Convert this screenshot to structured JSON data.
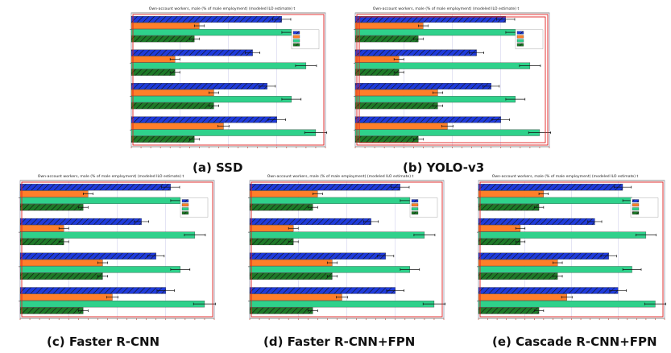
{
  "captions": {
    "a": "(a) SSD",
    "b": "(b) YOLO-v3",
    "c": "(c) Faster R-CNN",
    "d": "(d) Faster R-CNN+FPN",
    "e": "(e) Cascade R-CNN+FPN"
  },
  "chart_data": [
    {
      "type": "bar",
      "orientation": "horizontal",
      "title": "Own-account workers, male (% of male employment) (modeled ILO estimate) t",
      "xlabel": "",
      "ylabel": "",
      "grid": true,
      "legend_position": "top-right",
      "xlim": [
        0,
        40
      ],
      "categories": [
        "",
        "",
        "",
        ""
      ],
      "series": [
        {
          "name": "",
          "color": "#1f3bdb",
          "pattern": "hatch",
          "values": [
            31,
            25,
            28,
            30
          ]
        },
        {
          "name": "",
          "color": "#ff7f2a",
          "values": [
            14,
            9,
            17,
            19
          ]
        },
        {
          "name": "",
          "color": "#2fd18b",
          "values": [
            33,
            36,
            33,
            38
          ]
        },
        {
          "name": "",
          "color": "#1e7a28",
          "pattern": "hatch",
          "values": [
            13,
            9,
            17,
            13
          ]
        }
      ],
      "detections": 1
    },
    {
      "type": "bar",
      "orientation": "horizontal",
      "title": "Own-account workers, male (% of male employment) (modeled ILO estimate) t",
      "xlabel": "",
      "ylabel": "",
      "grid": true,
      "legend_position": "top-right",
      "xlim": [
        0,
        40
      ],
      "categories": [
        "",
        "",
        "",
        ""
      ],
      "series": [
        {
          "name": "",
          "color": "#1f3bdb",
          "pattern": "hatch",
          "values": [
            31,
            25,
            28,
            30
          ]
        },
        {
          "name": "",
          "color": "#ff7f2a",
          "values": [
            14,
            9,
            17,
            19
          ]
        },
        {
          "name": "",
          "color": "#2fd18b",
          "values": [
            33,
            36,
            33,
            38
          ]
        },
        {
          "name": "",
          "color": "#1e7a28",
          "pattern": "hatch",
          "values": [
            13,
            9,
            17,
            13
          ]
        }
      ],
      "detections": 2
    },
    {
      "type": "bar",
      "orientation": "horizontal",
      "title": "Own-account workers, male (% of male employment) (modeled ILO estimate) t",
      "xlabel": "",
      "ylabel": "",
      "grid": true,
      "legend_position": "top-right",
      "xlim": [
        0,
        40
      ],
      "categories": [
        "",
        "",
        "",
        ""
      ],
      "series": [
        {
          "name": "",
          "color": "#1f3bdb",
          "pattern": "hatch",
          "values": [
            31,
            25,
            28,
            30
          ]
        },
        {
          "name": "",
          "color": "#ff7f2a",
          "values": [
            14,
            9,
            17,
            19
          ]
        },
        {
          "name": "",
          "color": "#2fd18b",
          "values": [
            33,
            36,
            33,
            38
          ]
        },
        {
          "name": "",
          "color": "#1e7a28",
          "pattern": "hatch",
          "values": [
            13,
            9,
            17,
            13
          ]
        }
      ],
      "detections": 1
    },
    {
      "type": "bar",
      "orientation": "horizontal",
      "title": "Own-account workers, male (% of male employment) (modeled ILO estimate) t",
      "xlabel": "",
      "ylabel": "",
      "grid": true,
      "legend_position": "top-right",
      "xlim": [
        0,
        40
      ],
      "categories": [
        "",
        "",
        "",
        ""
      ],
      "series": [
        {
          "name": "",
          "color": "#1f3bdb",
          "pattern": "hatch",
          "values": [
            31,
            25,
            28,
            30
          ]
        },
        {
          "name": "",
          "color": "#ff7f2a",
          "values": [
            14,
            9,
            17,
            19
          ]
        },
        {
          "name": "",
          "color": "#2fd18b",
          "values": [
            33,
            36,
            33,
            38
          ]
        },
        {
          "name": "",
          "color": "#1e7a28",
          "pattern": "hatch",
          "values": [
            13,
            9,
            17,
            13
          ]
        }
      ],
      "detections": 1
    },
    {
      "type": "bar",
      "orientation": "horizontal",
      "title": "Own-account workers, male (% of male employment) (modeled ILO estimate) t",
      "xlabel": "",
      "ylabel": "",
      "grid": true,
      "legend_position": "top-right",
      "xlim": [
        0,
        40
      ],
      "categories": [
        "",
        "",
        "",
        ""
      ],
      "series": [
        {
          "name": "",
          "color": "#1f3bdb",
          "pattern": "hatch",
          "values": [
            31,
            25,
            28,
            30
          ]
        },
        {
          "name": "",
          "color": "#ff7f2a",
          "values": [
            14,
            9,
            17,
            19
          ]
        },
        {
          "name": "",
          "color": "#2fd18b",
          "values": [
            33,
            36,
            33,
            38
          ]
        },
        {
          "name": "",
          "color": "#1e7a28",
          "pattern": "hatch",
          "values": [
            13,
            9,
            17,
            13
          ]
        }
      ],
      "detections": 1
    }
  ]
}
